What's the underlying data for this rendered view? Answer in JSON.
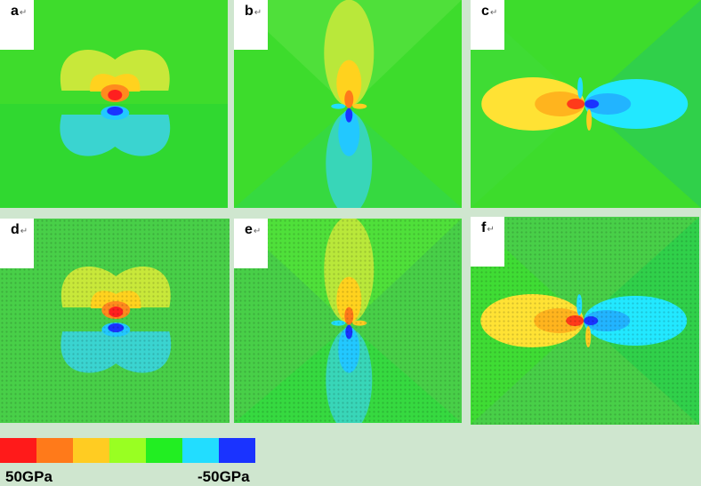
{
  "panels": [
    {
      "id": "a",
      "label": "a",
      "mark": "↵",
      "bg": "#30d830",
      "pattern": "dipole-vertical",
      "textured": false
    },
    {
      "id": "b",
      "label": "b",
      "mark": "↵",
      "bg": "#3ddc2c",
      "pattern": "lobes-vertical",
      "textured": false
    },
    {
      "id": "c",
      "label": "c",
      "mark": "↵",
      "bg": "#3ddc2c",
      "pattern": "lobes-horizontal",
      "textured": false
    },
    {
      "id": "d",
      "label": "d",
      "mark": "↵",
      "bg": "#48cf48",
      "pattern": "dipole-vertical",
      "textured": true
    },
    {
      "id": "e",
      "label": "e",
      "mark": "↵",
      "bg": "#48cf48",
      "pattern": "lobes-vertical",
      "textured": true
    },
    {
      "id": "f",
      "label": "f",
      "mark": "↵",
      "bg": "#48cf48",
      "pattern": "lobes-horizontal",
      "textured": true
    }
  ],
  "colorbar": {
    "colors": [
      "#ff1a1a",
      "#ff7a1a",
      "#ffcc22",
      "#99ff22",
      "#22ee22",
      "#22ddff",
      "#1a33ff"
    ],
    "min_label": "50GPa",
    "max_label": "-50GPa"
  }
}
